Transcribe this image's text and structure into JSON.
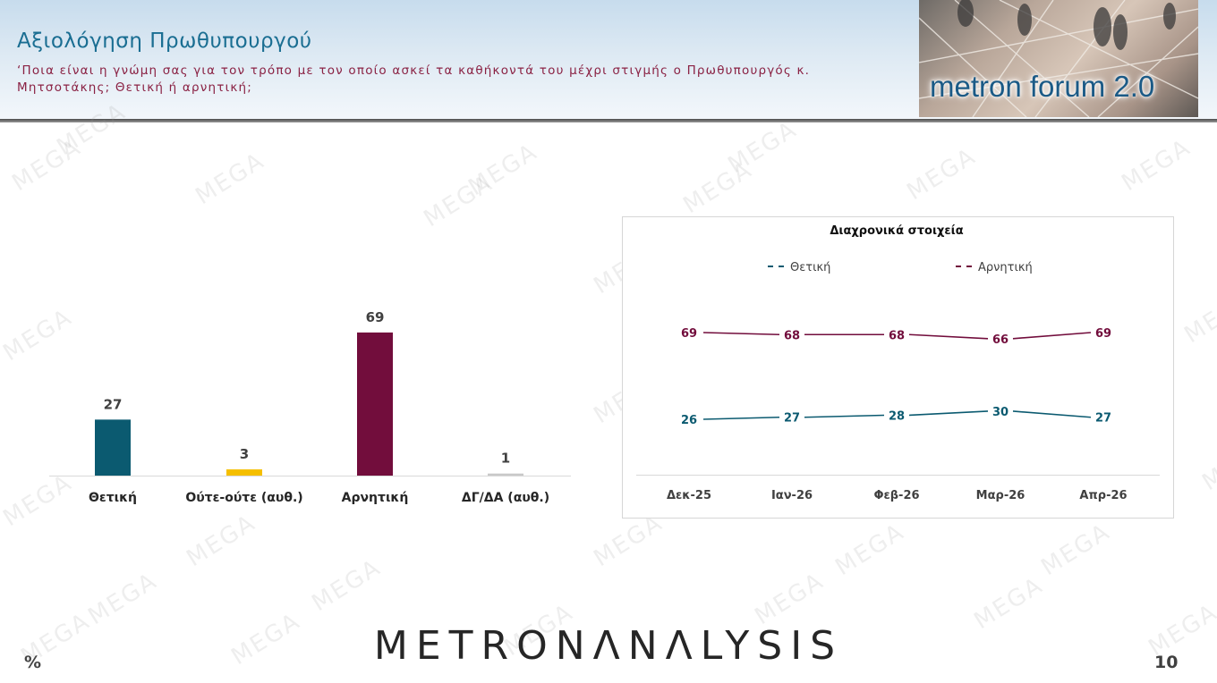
{
  "header": {
    "title": "Αξιολόγηση Πρωθυπουργού",
    "subtitle": "‘Ποια είναι η γνώμη σας για τον τρόπο με τον οποίο ασκεί τα καθήκοντά του μέχρι στιγμής ο Πρωθυπουργός κ. Μητσοτάκης; Θετική ή αρνητική;",
    "logo_text": "metron forum 2.0"
  },
  "watermark_text": "MEGA",
  "footer": {
    "unit": "%",
    "brand": "METRONΛNΛLYSIS",
    "page_number": "10"
  },
  "colors": {
    "title": "#1a6e92",
    "subtitle": "#8a2143",
    "positive": "#0b5a70",
    "neutral": "#f5bf00",
    "negative": "#720d3c",
    "dk": "#c9c9c9"
  },
  "chart_data": [
    {
      "type": "bar",
      "categories": [
        "Θετική",
        "Ούτε-ούτε (αυθ.)",
        "Αρνητική",
        "ΔΓ/ΔΑ (αυθ.)"
      ],
      "values": [
        27,
        3,
        69,
        1
      ],
      "colors": [
        "#0b5a70",
        "#f5bf00",
        "#720d3c",
        "#c9c9c9"
      ],
      "ylim": [
        0,
        80
      ]
    },
    {
      "type": "line",
      "title": "Διαχρονικά στοιχεία",
      "categories": [
        "Δεκ-25",
        "Ιαν-26",
        "Φεβ-26",
        "Μαρ-26",
        "Απρ-26"
      ],
      "series": [
        {
          "name": "Θετική",
          "values": [
            26,
            27,
            28,
            30,
            27
          ],
          "color": "#0b5a70"
        },
        {
          "name": "Αρνητική",
          "values": [
            69,
            68,
            68,
            66,
            69
          ],
          "color": "#720d3c"
        }
      ],
      "legend": "top",
      "ylim": [
        10,
        80
      ]
    }
  ]
}
